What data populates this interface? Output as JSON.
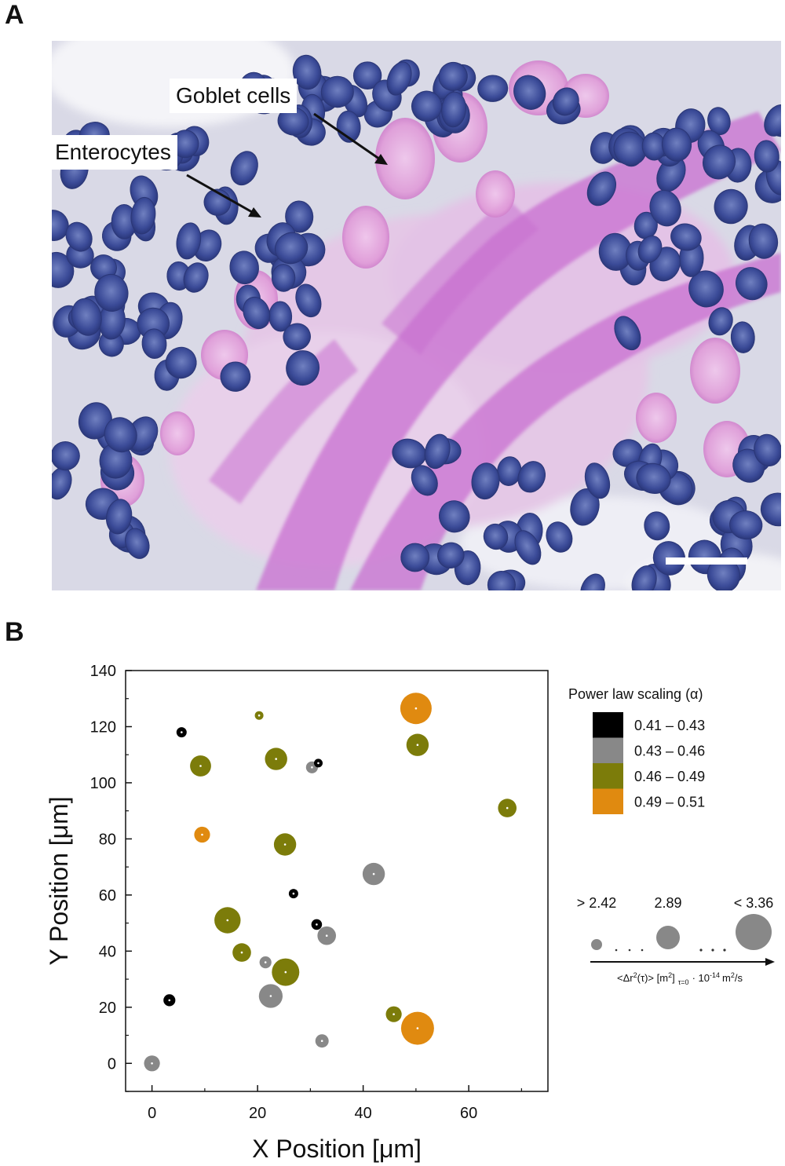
{
  "panel_a": {
    "label": "A",
    "annotations": {
      "goblet": "Goblet cells",
      "enterocytes": "Enterocytes"
    },
    "image_description_icon": "histology-micrograph",
    "colors": {
      "mucus": "#c86fd0",
      "nucleus": "#3a4d9a",
      "background": "#dcdde8"
    }
  },
  "panel_b": {
    "label": "B",
    "legend": {
      "color_title": "Power law scaling (α)",
      "color_entries": [
        {
          "range": "0.41 – 0.43",
          "color": "#000000"
        },
        {
          "range": "0.43 – 0.46",
          "color": "#888888"
        },
        {
          "range": "0.46 – 0.49",
          "color": "#7c7c0a"
        },
        {
          "range": "0.49 – 0.51",
          "color": "#e08a10"
        }
      ],
      "size_labels": [
        "> 2.42",
        "2.89",
        "< 3.36"
      ],
      "size_axis_prefix": "<Δr",
      "size_axis_sup1": "2",
      "size_axis_mid": "(τ)> [m",
      "size_axis_sup2": "2",
      "size_axis_close": "]",
      "size_axis_sub": "τ=0",
      "size_axis_mult": "· 10",
      "size_axis_exp": "-14",
      "size_axis_unit": "m",
      "size_axis_unit_sup": "2",
      "size_axis_tail": "/s"
    }
  },
  "chart_data": {
    "type": "scatter",
    "xlabel": "X Position [μm]",
    "ylabel": "Y Position [μm]",
    "xlim": [
      -5,
      75
    ],
    "ylim": [
      -10,
      140
    ],
    "xticks": [
      0,
      20,
      40,
      60
    ],
    "yticks": [
      0,
      20,
      40,
      60,
      80,
      100,
      120,
      140
    ],
    "point_size_meaning": "<Δr²(τ)> at τ=0 · 10^-14 m²/s",
    "point_color_meaning": "Power law scaling (α)",
    "points": [
      {
        "x": 0,
        "y": 0,
        "alpha_class": "0.43 – 0.46",
        "size": 2.7
      },
      {
        "x": 3.3,
        "y": 22.5,
        "alpha_class": "0.41 – 0.43",
        "size": 2.55
      },
      {
        "x": 5.6,
        "y": 118,
        "alpha_class": "0.41 – 0.43",
        "size": 2.48
      },
      {
        "x": 9.2,
        "y": 106,
        "alpha_class": "0.46 – 0.49",
        "size": 2.9
      },
      {
        "x": 9.5,
        "y": 81.5,
        "alpha_class": "0.49 – 0.51",
        "size": 2.7
      },
      {
        "x": 14.3,
        "y": 51,
        "alpha_class": "0.46 – 0.49",
        "size": 3.1
      },
      {
        "x": 17,
        "y": 39.5,
        "alpha_class": "0.46 – 0.49",
        "size": 2.8
      },
      {
        "x": 20.3,
        "y": 124,
        "alpha_class": "0.46 – 0.49",
        "size": 2.42
      },
      {
        "x": 21.5,
        "y": 36,
        "alpha_class": "0.43 – 0.46",
        "size": 2.55
      },
      {
        "x": 22.5,
        "y": 24,
        "alpha_class": "0.43 – 0.46",
        "size": 3.0
      },
      {
        "x": 23.5,
        "y": 108.5,
        "alpha_class": "0.46 – 0.49",
        "size": 2.95
      },
      {
        "x": 25.2,
        "y": 78,
        "alpha_class": "0.46 – 0.49",
        "size": 2.95
      },
      {
        "x": 25.3,
        "y": 32.5,
        "alpha_class": "0.46 – 0.49",
        "size": 3.15
      },
      {
        "x": 26.8,
        "y": 60.5,
        "alpha_class": "0.41 – 0.43",
        "size": 2.45
      },
      {
        "x": 30.3,
        "y": 105.5,
        "alpha_class": "0.43 – 0.46",
        "size": 2.55
      },
      {
        "x": 31.2,
        "y": 49.5,
        "alpha_class": "0.41 – 0.43",
        "size": 2.5
      },
      {
        "x": 31.5,
        "y": 107,
        "alpha_class": "0.41 – 0.43",
        "size": 2.42
      },
      {
        "x": 32.2,
        "y": 8,
        "alpha_class": "0.43 – 0.46",
        "size": 2.6
      },
      {
        "x": 33.1,
        "y": 45.5,
        "alpha_class": "0.43 – 0.46",
        "size": 2.8
      },
      {
        "x": 42,
        "y": 67.5,
        "alpha_class": "0.43 – 0.46",
        "size": 2.95
      },
      {
        "x": 45.8,
        "y": 17.5,
        "alpha_class": "0.46 – 0.49",
        "size": 2.7
      },
      {
        "x": 50,
        "y": 126.5,
        "alpha_class": "0.49 – 0.51",
        "size": 3.3
      },
      {
        "x": 50.3,
        "y": 113.5,
        "alpha_class": "0.46 – 0.49",
        "size": 2.95
      },
      {
        "x": 50.3,
        "y": 12.5,
        "alpha_class": "0.49 – 0.51",
        "size": 3.36
      },
      {
        "x": 67.3,
        "y": 91,
        "alpha_class": "0.46 – 0.49",
        "size": 2.8
      }
    ]
  }
}
